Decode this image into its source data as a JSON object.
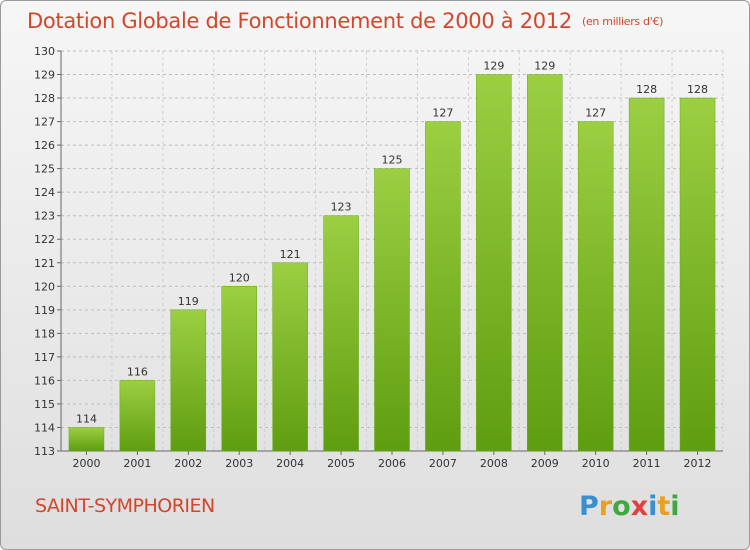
{
  "header": {
    "title": "Dotation Globale de Fonctionnement de 2000 à 2012",
    "subtitle": "(en milliers d'€)"
  },
  "footer": {
    "commune": "SAINT-SYMPHORIEN",
    "logo_letters": [
      {
        "char": "P",
        "color": "#3a8fd0"
      },
      {
        "char": "r",
        "color": "#e8a020"
      },
      {
        "char": "o",
        "color": "#3fa83f"
      },
      {
        "char": "x",
        "color": "#e04040"
      },
      {
        "char": "i",
        "color": "#3a8fd0"
      },
      {
        "char": "t",
        "color": "#e8a020"
      },
      {
        "char": "i",
        "color": "#3fa83f"
      }
    ]
  },
  "chart_data": {
    "type": "bar",
    "categories": [
      "2000",
      "2001",
      "2002",
      "2003",
      "2004",
      "2005",
      "2006",
      "2007",
      "2008",
      "2009",
      "2010",
      "2011",
      "2012"
    ],
    "values": [
      114,
      116,
      119,
      120,
      121,
      123,
      125,
      127,
      129,
      129,
      127,
      128,
      128
    ],
    "ylim": [
      113,
      130
    ],
    "yticks": [
      113,
      114,
      115,
      116,
      117,
      118,
      119,
      120,
      121,
      122,
      123,
      124,
      125,
      126,
      127,
      128,
      129,
      130
    ],
    "grid": true,
    "bar_color": "#7fbf2a",
    "title": "Dotation Globale de Fonctionnement de 2000 à 2012",
    "xlabel": "",
    "ylabel": ""
  }
}
